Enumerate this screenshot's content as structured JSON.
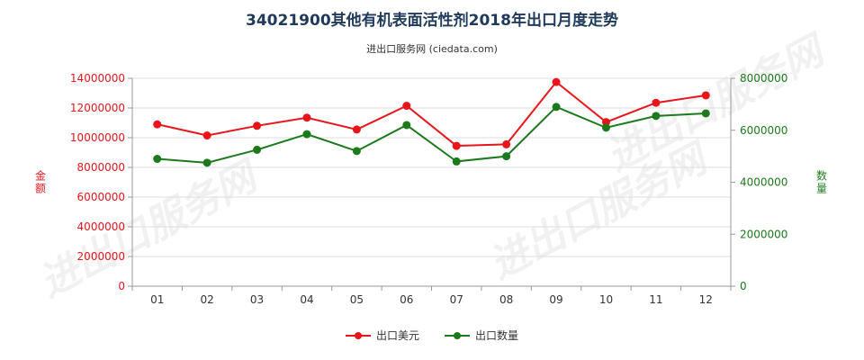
{
  "chart_data": {
    "type": "line",
    "title": "34021900其他有机表面活性剂2018年出口月度走势",
    "subtitle": "进出口服务网 (ciedata.com)",
    "categories": [
      "01",
      "02",
      "03",
      "04",
      "05",
      "06",
      "07",
      "08",
      "09",
      "10",
      "11",
      "12"
    ],
    "y_left": {
      "label": "金额",
      "ylim": [
        0,
        14000000
      ],
      "ticks": [
        "0",
        "2000000",
        "4000000",
        "6000000",
        "8000000",
        "10000000",
        "12000000",
        "14000000"
      ],
      "color": "#e8151b"
    },
    "y_right": {
      "label": "数量",
      "ylim": [
        0,
        8000000
      ],
      "ticks": [
        "0",
        "2000000",
        "4000000",
        "6000000",
        "8000000"
      ],
      "color": "#1b7a1b"
    },
    "series": [
      {
        "name": "出口美元",
        "axis": "left",
        "color": "#e8151b",
        "values": [
          10900000,
          10150000,
          10800000,
          11350000,
          10550000,
          12150000,
          9450000,
          9550000,
          13750000,
          11050000,
          12350000,
          12850000
        ]
      },
      {
        "name": "出口数量",
        "axis": "right",
        "color": "#1b7a1b",
        "values": [
          4900000,
          4750000,
          5250000,
          5850000,
          5200000,
          6200000,
          4800000,
          5000000,
          6900000,
          6100000,
          6550000,
          6650000
        ]
      }
    ],
    "legend_position": "bottom",
    "watermark": "进出口服务网"
  }
}
